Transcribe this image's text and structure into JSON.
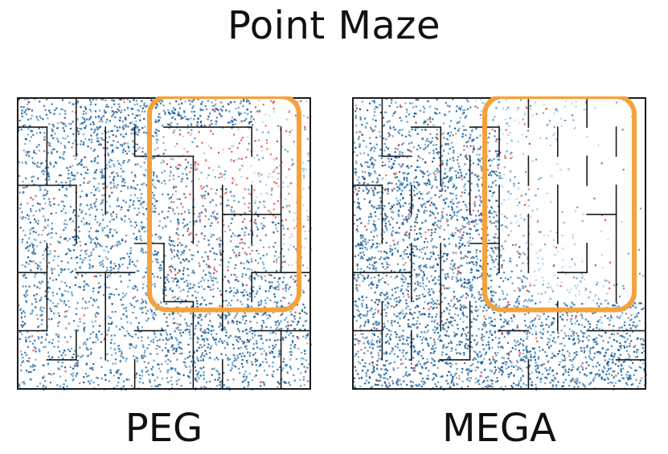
{
  "title": "Point Maze",
  "colors": {
    "wall": "#1a1a1a",
    "visited_dark": "#175c96",
    "visited_mid": "#4f8fc0",
    "visited_light": "#a9cde6",
    "sample_red": "#e0403a",
    "highlight": "#f5a23c",
    "background": "#ffffff"
  },
  "chart_data": [
    {
      "type": "scatter",
      "title": "PEG",
      "xlim": [
        0,
        10
      ],
      "ylim": [
        0,
        10
      ],
      "grid": false,
      "maze_size": 10,
      "highlight_region": {
        "x": [
          5,
          10
        ],
        "y": [
          1,
          8
        ]
      },
      "density": [
        [
          0.55,
          0.45,
          0.8,
          0.85,
          0.85,
          0.8,
          0.8,
          0.75,
          0.25,
          0.2
        ],
        [
          0.5,
          0.55,
          0.7,
          0.75,
          0.6,
          0.25,
          0.2,
          0.2,
          0.2,
          0.2
        ],
        [
          0.5,
          0.55,
          0.7,
          0.65,
          0.55,
          0.45,
          0.35,
          0.3,
          0.35,
          0.3
        ],
        [
          0.5,
          0.4,
          0.6,
          0.6,
          0.55,
          0.5,
          0.45,
          0.4,
          0.35,
          0.3
        ],
        [
          0.55,
          0.45,
          0.55,
          0.5,
          0.5,
          0.5,
          0.5,
          0.45,
          0.4,
          0.35
        ],
        [
          0.6,
          0.5,
          0.65,
          0.6,
          0.55,
          0.75,
          0.55,
          0.45,
          0.4,
          0.35
        ],
        [
          0.55,
          0.45,
          0.45,
          0.4,
          0.45,
          0.7,
          0.55,
          0.7,
          0.7,
          0.4
        ],
        [
          0.5,
          0.4,
          0.4,
          0.45,
          0.5,
          0.7,
          0.8,
          0.85,
          0.8,
          0.7
        ],
        [
          0.55,
          0.5,
          0.45,
          0.5,
          0.6,
          0.8,
          0.85,
          0.8,
          0.7,
          0.6
        ],
        [
          0.55,
          0.5,
          0.45,
          0.45,
          0.55,
          0.6,
          0.65,
          0.55,
          0.5,
          0.45
        ]
      ],
      "red_fraction": [
        [
          0.02,
          0.02,
          0.02,
          0.02,
          0.02,
          0.02,
          0.02,
          0.02,
          0.35,
          0.45
        ],
        [
          0.02,
          0.02,
          0.02,
          0.02,
          0.05,
          0.35,
          0.4,
          0.45,
          0.45,
          0.4
        ],
        [
          0.02,
          0.02,
          0.02,
          0.02,
          0.05,
          0.25,
          0.35,
          0.4,
          0.35,
          0.3
        ],
        [
          0.02,
          0.02,
          0.02,
          0.02,
          0.03,
          0.2,
          0.3,
          0.35,
          0.3,
          0.25
        ],
        [
          0.02,
          0.02,
          0.02,
          0.02,
          0.03,
          0.15,
          0.25,
          0.3,
          0.25,
          0.2
        ],
        [
          0.02,
          0.02,
          0.02,
          0.02,
          0.02,
          0.05,
          0.15,
          0.2,
          0.2,
          0.15
        ],
        [
          0.02,
          0.02,
          0.02,
          0.02,
          0.02,
          0.03,
          0.05,
          0.05,
          0.05,
          0.1
        ],
        [
          0.02,
          0.02,
          0.02,
          0.02,
          0.02,
          0.02,
          0.03,
          0.03,
          0.03,
          0.05
        ],
        [
          0.02,
          0.02,
          0.02,
          0.02,
          0.02,
          0.02,
          0.02,
          0.02,
          0.02,
          0.03
        ],
        [
          0.02,
          0.02,
          0.02,
          0.02,
          0.02,
          0.02,
          0.02,
          0.02,
          0.02,
          0.02
        ]
      ]
    },
    {
      "type": "scatter",
      "title": "MEGA",
      "xlim": [
        0,
        10
      ],
      "ylim": [
        0,
        10
      ],
      "grid": false,
      "maze_size": 10,
      "highlight_region": {
        "x": [
          5,
          10
        ],
        "y": [
          1,
          8
        ]
      },
      "density": [
        [
          0.45,
          0.45,
          0.5,
          0.45,
          0.35,
          0.3,
          0.25,
          0.2,
          0.03,
          0.02
        ],
        [
          0.55,
          0.6,
          0.6,
          0.65,
          0.6,
          0.25,
          0.1,
          0.03,
          0.02,
          0.02
        ],
        [
          0.8,
          0.75,
          0.75,
          0.8,
          0.75,
          0.2,
          0.08,
          0.03,
          0.02,
          0.02
        ],
        [
          0.8,
          0.75,
          0.75,
          0.8,
          0.75,
          0.25,
          0.1,
          0.05,
          0.02,
          0.02
        ],
        [
          0.8,
          0.75,
          0.7,
          0.75,
          0.75,
          0.3,
          0.15,
          0.08,
          0.05,
          0.02
        ],
        [
          0.8,
          0.75,
          0.75,
          0.75,
          0.75,
          0.4,
          0.25,
          0.15,
          0.05,
          0.03
        ],
        [
          0.8,
          0.75,
          0.8,
          0.8,
          0.8,
          0.55,
          0.35,
          0.3,
          0.3,
          0.1
        ],
        [
          0.8,
          0.75,
          0.8,
          0.8,
          0.8,
          0.7,
          0.6,
          0.65,
          0.7,
          0.65
        ],
        [
          0.8,
          0.8,
          0.8,
          0.8,
          0.8,
          0.8,
          0.8,
          0.8,
          0.8,
          0.8
        ],
        [
          0.8,
          0.8,
          0.8,
          0.8,
          0.8,
          0.8,
          0.8,
          0.8,
          0.8,
          0.8
        ]
      ],
      "red_fraction": [
        [
          0.08,
          0.06,
          0.06,
          0.06,
          0.06,
          0.1,
          0.1,
          0.1,
          0.1,
          0.1
        ],
        [
          0.06,
          0.06,
          0.06,
          0.06,
          0.06,
          0.1,
          0.1,
          0.1,
          0.1,
          0.1
        ],
        [
          0.05,
          0.05,
          0.05,
          0.05,
          0.06,
          0.1,
          0.1,
          0.1,
          0.1,
          0.1
        ],
        [
          0.05,
          0.05,
          0.05,
          0.05,
          0.05,
          0.1,
          0.1,
          0.1,
          0.1,
          0.1
        ],
        [
          0.05,
          0.05,
          0.05,
          0.05,
          0.05,
          0.08,
          0.08,
          0.08,
          0.08,
          0.08
        ],
        [
          0.05,
          0.05,
          0.05,
          0.05,
          0.05,
          0.08,
          0.08,
          0.08,
          0.08,
          0.08
        ],
        [
          0.05,
          0.05,
          0.05,
          0.05,
          0.05,
          0.08,
          0.08,
          0.08,
          0.08,
          0.08
        ],
        [
          0.05,
          0.05,
          0.05,
          0.05,
          0.05,
          0.06,
          0.06,
          0.06,
          0.06,
          0.06
        ],
        [
          0.04,
          0.04,
          0.04,
          0.04,
          0.04,
          0.04,
          0.04,
          0.04,
          0.04,
          0.04
        ],
        [
          0.04,
          0.04,
          0.04,
          0.04,
          0.04,
          0.04,
          0.04,
          0.04,
          0.04,
          0.04
        ]
      ]
    }
  ]
}
